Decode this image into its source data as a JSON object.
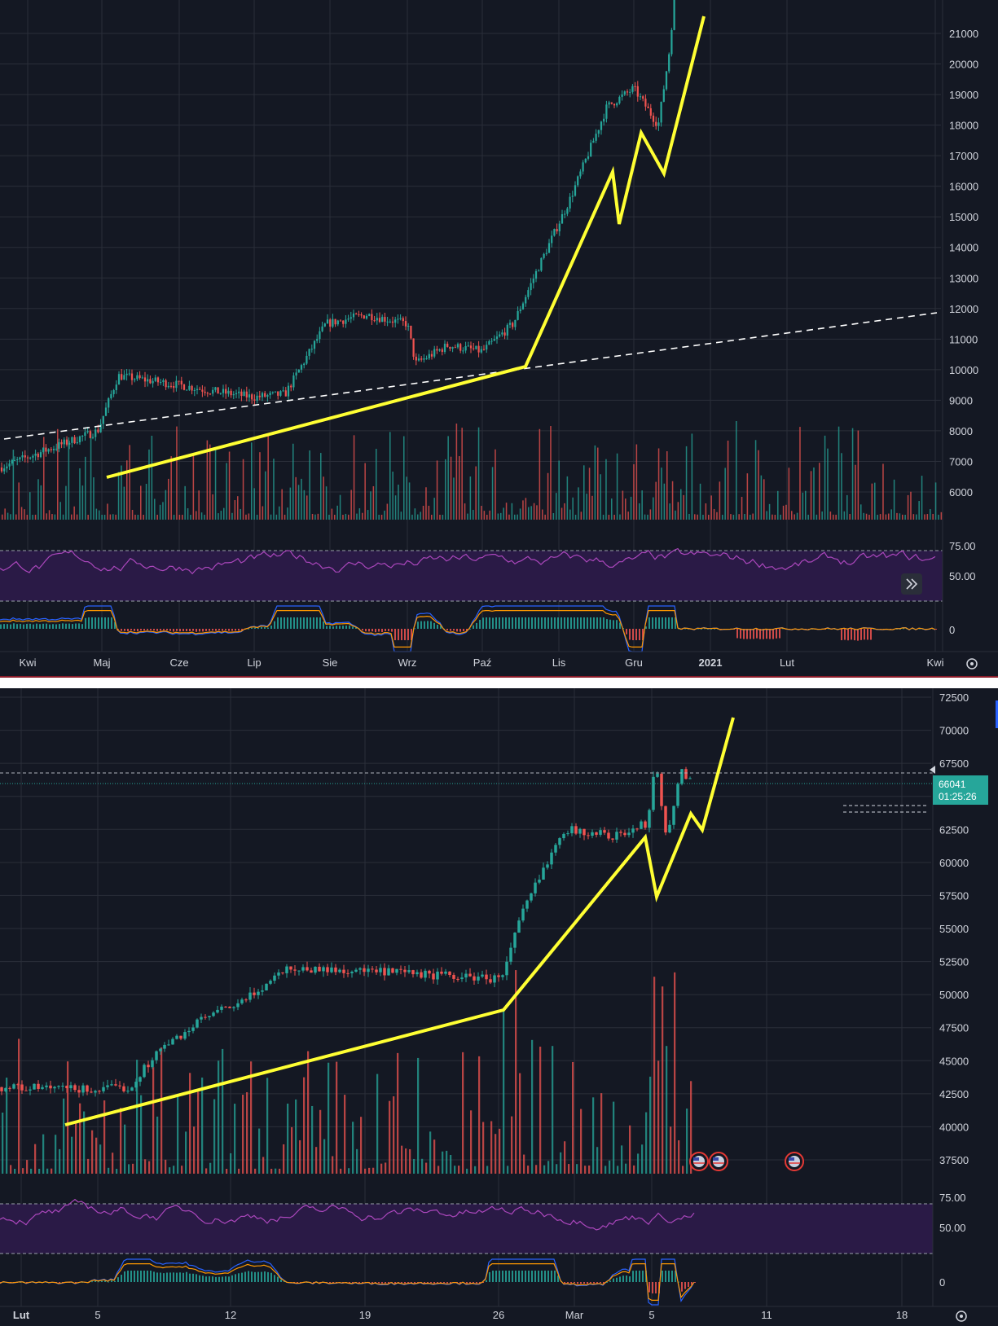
{
  "colors": {
    "background": "#141823",
    "grid": "#2a2e39",
    "up": "#26a69a",
    "down": "#ef5350",
    "rsi_line": "#ab47bc",
    "rsi_band": "#2a1a46",
    "macd_line": "#2962ff",
    "signal_line": "#ff9800",
    "projection": "#ffff33",
    "axis_text": "#d1d4dc",
    "price_badge": "#26a69a"
  },
  "icons": {
    "scroll_right": "double-chevron-right-icon",
    "settings": "gear-icon",
    "economic_event": "us-flag-icon"
  },
  "chart_data": [
    {
      "type": "candlestick",
      "title": "",
      "price_axis": {
        "ticks": [
          "21000",
          "20000",
          "19000",
          "18000",
          "17000",
          "16000",
          "15000",
          "14000",
          "13000",
          "12000",
          "11000",
          "10000",
          "9000",
          "8000",
          "7000",
          "6000"
        ],
        "range": [
          5300,
          21600
        ]
      },
      "time_axis": {
        "ticks": [
          "Kwi",
          "Maj",
          "Cze",
          "Lip",
          "Sie",
          "Wrz",
          "Paź",
          "Lis",
          "Gru",
          "2021",
          "Lut",
          "Kwi"
        ],
        "bold_tick": "2021"
      },
      "price_path": [
        [
          "Kwi",
          6800
        ],
        [
          "Maj",
          8000
        ],
        [
          "Maj-15",
          9800
        ],
        [
          "Cze",
          9500
        ],
        [
          "Cze-20",
          9300
        ],
        [
          "Lip",
          9100
        ],
        [
          "Lip-20",
          9200
        ],
        [
          "Sie",
          11500
        ],
        [
          "Sie-20",
          11800
        ],
        [
          "Wrz",
          11500
        ],
        [
          "Wrz-05",
          10200
        ],
        [
          "Wrz-20",
          10800
        ],
        [
          "Paź",
          10600
        ],
        [
          "Paź-15",
          11500
        ],
        [
          "Lis",
          13300
        ],
        [
          "Lis-10",
          15600
        ],
        [
          "Lis-25",
          18600
        ],
        [
          "Gru",
          19200
        ],
        [
          "Gru-10",
          18000
        ],
        [
          "Gru-16",
          20500
        ],
        [
          "Gru-20",
          23000
        ]
      ],
      "projection": [
        [
          "Maj",
          6500
        ],
        [
          "Paź-20",
          10150
        ],
        [
          "Lis-20",
          16500
        ],
        [
          "Gru-01",
          14800
        ],
        [
          "Gru-05",
          17800
        ],
        [
          "Gru-15",
          16500
        ],
        [
          "Gru-25",
          21500
        ]
      ],
      "trendline": {
        "style": "dashed",
        "from": [
          "start",
          7750
        ],
        "to": [
          "end",
          11850
        ]
      },
      "indicators": {
        "rsi": {
          "levels": [
            "75.00",
            "50.00"
          ]
        },
        "macd": {
          "zero_label": "0"
        }
      }
    },
    {
      "type": "candlestick",
      "title": "",
      "price_axis": {
        "ticks": [
          "72500",
          "70000",
          "67500",
          "65000",
          "62500",
          "60000",
          "57500",
          "55000",
          "52500",
          "50000",
          "47500",
          "45000",
          "42500",
          "40000",
          "37500"
        ],
        "range": [
          36600,
          72800
        ]
      },
      "time_axis": {
        "ticks": [
          "Lut",
          "5",
          "12",
          "19",
          "26",
          "Mar",
          "5",
          "11",
          "18"
        ],
        "bold_tick": "Lut"
      },
      "last_price": {
        "value": "66041",
        "countdown": "01:25:26"
      },
      "price_path": [
        [
          "Lut-01",
          43000
        ],
        [
          "Lut-05",
          42800
        ],
        [
          "Lut-08",
          43000
        ],
        [
          "Lut-10",
          45500
        ],
        [
          "Lut-12",
          48200
        ],
        [
          "Lut-14",
          49500
        ],
        [
          "Lut-16",
          52000
        ],
        [
          "Lut-19",
          51800
        ],
        [
          "Lut-22",
          51500
        ],
        [
          "Lut-26",
          51200
        ],
        [
          "Lut-28",
          56000
        ],
        [
          "Mar-01",
          62500
        ],
        [
          "Mar-03",
          62000
        ],
        [
          "Mar-05",
          63000
        ],
        [
          "Mar-06",
          68000
        ],
        [
          "Mar-07",
          61500
        ],
        [
          "Mar-08",
          67000
        ],
        [
          "Mar-09",
          66041
        ]
      ],
      "projection": [
        [
          "Lut-04",
          40300
        ],
        [
          "Lut-26",
          48900
        ],
        [
          "Mar-05",
          62000
        ],
        [
          "Mar-06",
          57500
        ],
        [
          "Mar-07",
          63800
        ],
        [
          "Mar-08",
          62500
        ],
        [
          "Mar-10",
          71000
        ]
      ],
      "reference_levels": [
        67600,
        64700,
        64300
      ],
      "indicators": {
        "rsi": {
          "levels": [
            "75.00",
            "50.00"
          ]
        },
        "macd": {
          "zero_label": "0"
        }
      }
    }
  ]
}
